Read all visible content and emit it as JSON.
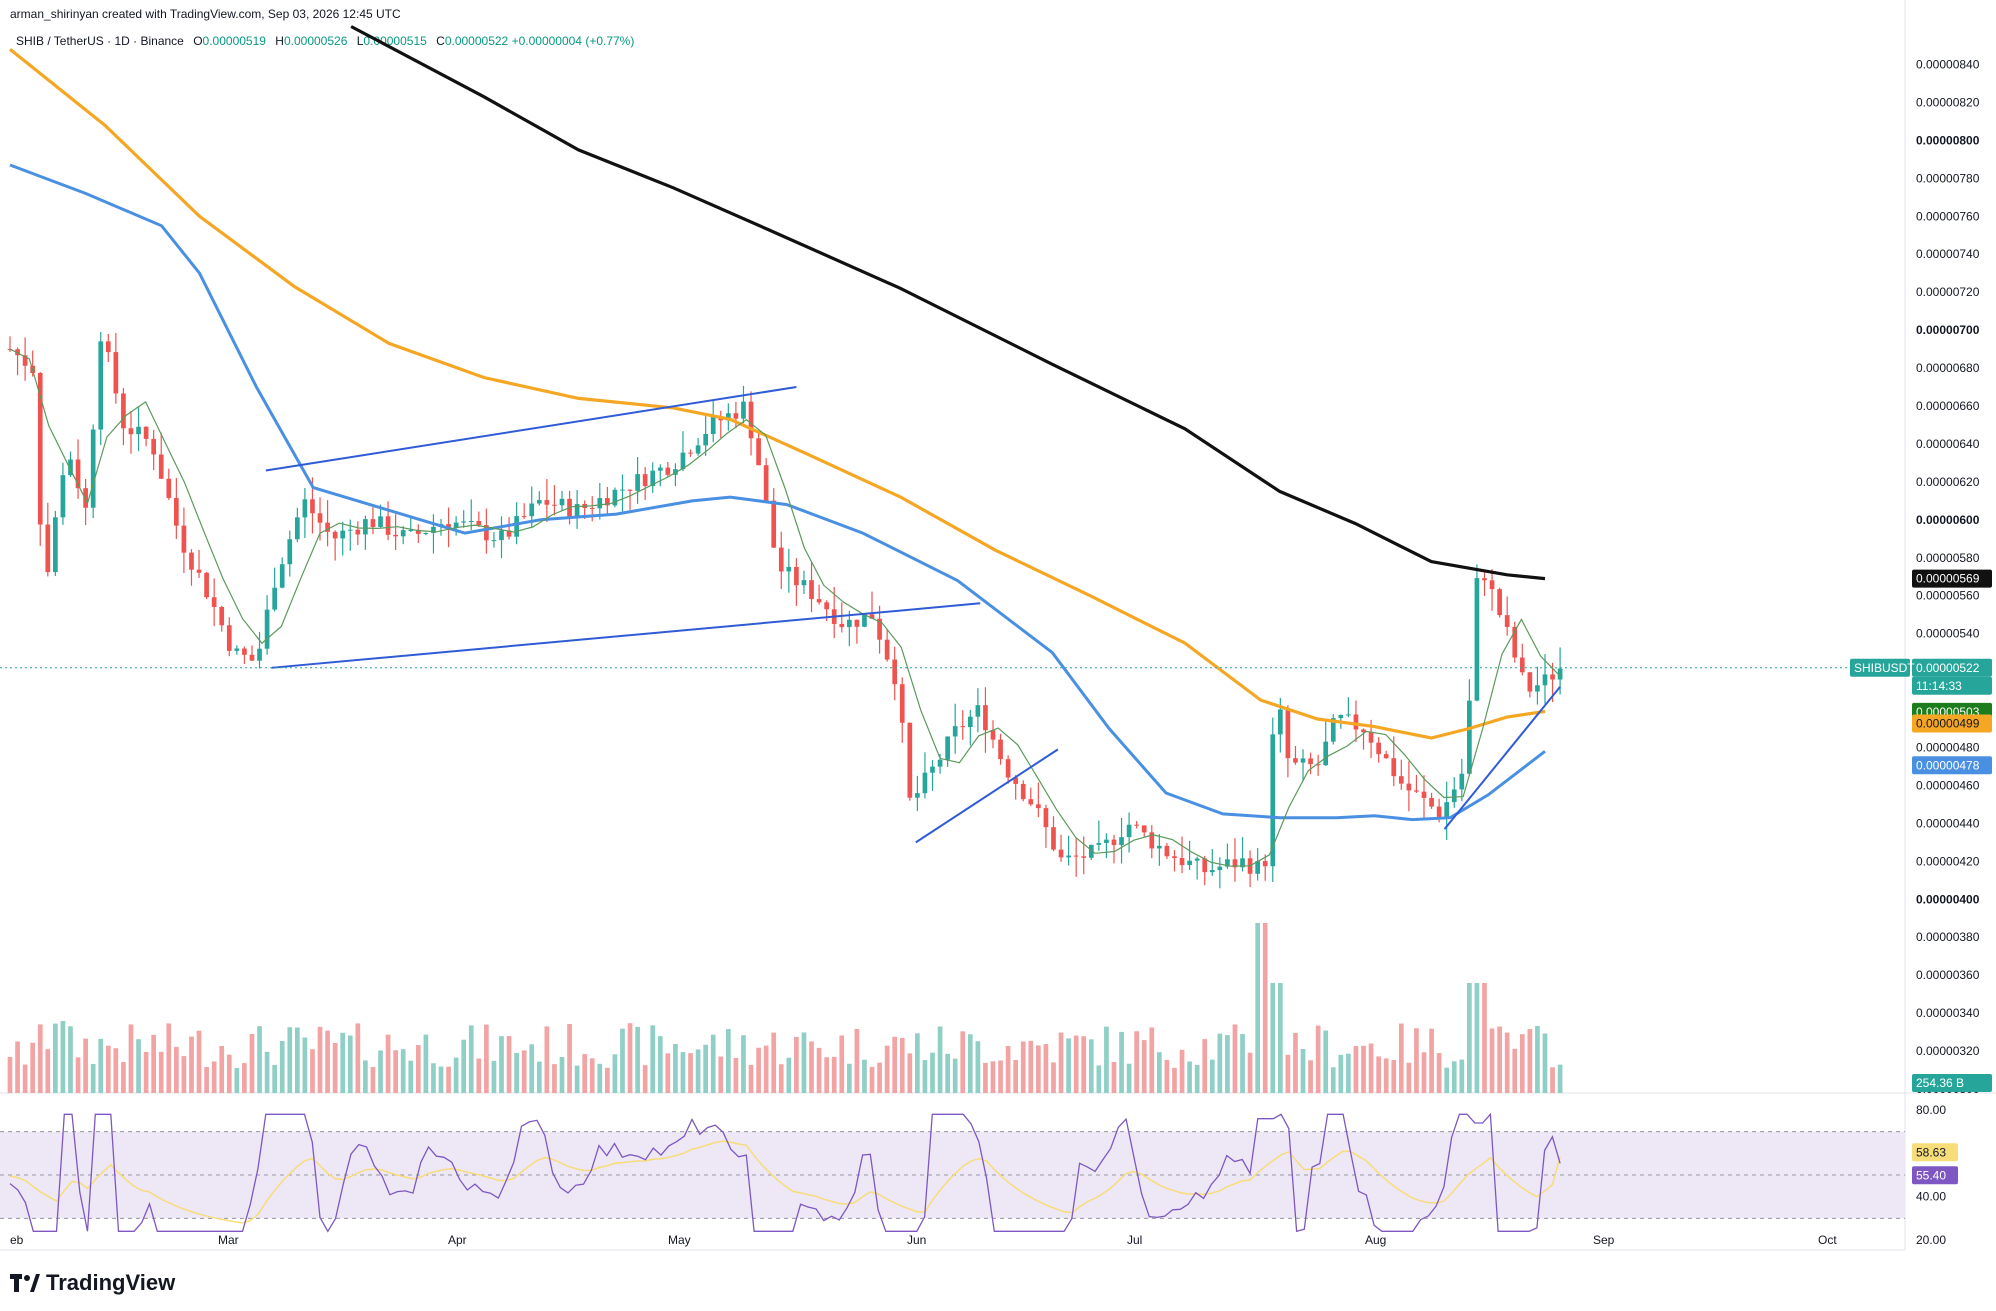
{
  "header": {
    "credit": "arman_shirinyan created with TradingView.com, Sep 03, 2026 12:45 UTC"
  },
  "symbol": {
    "name": "SHIB / TetherUS · 1D · Binance",
    "open_label": "O",
    "open": "0.00000519",
    "high_label": "H",
    "high": "0.00000526",
    "low_label": "L",
    "low": "0.00000515",
    "close_label": "C",
    "close": "0.00000522",
    "change": "+0.00000004 (+0.77%)"
  },
  "logo": {
    "text": "TradingView",
    "icon": "tradingview-logo-icon"
  },
  "colors": {
    "up": "#26a69a",
    "down": "#ef5350",
    "volume_up": "#8fcfc5",
    "volume_down": "#f2a3a3",
    "ma_fast": "#5b9a5b",
    "ma_50": "#4a90e2",
    "ma_100": "#f5a623",
    "ma_200": "#111111",
    "trendline": "#2f5bd6",
    "rsi": "#7e57c2",
    "rsi_ma": "#f7dd7a",
    "rsi_band": "#ede7f6"
  },
  "badges": {
    "ma200": "0.00000569",
    "symbol_tag": "SHIBUSDT",
    "price": "0.00000522",
    "countdown": "11:14:33",
    "ma_fast": "0.00000503",
    "ma100": "0.00000499",
    "ma50": "0.00000478",
    "volume": "254.36 B",
    "rsi_ma": "58.63",
    "rsi": "55.40"
  },
  "chart_data": {
    "type": "candlestick",
    "symbol": "SHIBUSDT",
    "timeframe": "1D",
    "x_labels": [
      "eb",
      "Mar",
      "Apr",
      "May",
      "Jun",
      "Jul",
      "Aug",
      "Sep",
      "Oct"
    ],
    "y_ticks": [
      "0.00000840",
      "0.00000820",
      "0.00000800",
      "0.00000780",
      "0.00000760",
      "0.00000740",
      "0.00000720",
      "0.00000700",
      "0.00000680",
      "0.00000660",
      "0.00000640",
      "0.00000620",
      "0.00000600",
      "0.00000580",
      "0.00000560",
      "0.00000540",
      "0.00000520",
      "0.00000500",
      "0.00000480",
      "0.00000460",
      "0.00000440",
      "0.00000420",
      "0.00000400",
      "0.00000380",
      "0.00000360",
      "0.00000340",
      "0.00000320",
      "0.00000300"
    ],
    "ylim": [
      3e-06,
      8.45e-06
    ],
    "rsi_ticks": [
      "80.00",
      "40.00",
      "20.00"
    ],
    "rsi_levels": [
      70,
      50,
      30
    ],
    "moving_averages": [
      {
        "name": "200",
        "last": 5.69e-06,
        "points": [
          [
            0.18,
            8.6e-06
          ],
          [
            0.25,
            8.23e-06
          ],
          [
            0.3,
            7.95e-06
          ],
          [
            0.35,
            7.75e-06
          ],
          [
            0.4,
            7.53e-06
          ],
          [
            0.47,
            7.22e-06
          ],
          [
            0.55,
            6.82e-06
          ],
          [
            0.62,
            6.48e-06
          ],
          [
            0.67,
            6.15e-06
          ],
          [
            0.71,
            5.98e-06
          ],
          [
            0.75,
            5.78e-06
          ],
          [
            0.79,
            5.71e-06
          ],
          [
            0.81,
            5.69e-06
          ]
        ]
      },
      {
        "name": "100",
        "last": 4.99e-06,
        "points": [
          [
            0.0,
            8.48e-06
          ],
          [
            0.05,
            8.08e-06
          ],
          [
            0.1,
            7.6e-06
          ],
          [
            0.15,
            7.23e-06
          ],
          [
            0.2,
            6.93e-06
          ],
          [
            0.25,
            6.75e-06
          ],
          [
            0.3,
            6.64e-06
          ],
          [
            0.35,
            6.59e-06
          ],
          [
            0.38,
            6.53e-06
          ],
          [
            0.42,
            6.35e-06
          ],
          [
            0.47,
            6.12e-06
          ],
          [
            0.52,
            5.84e-06
          ],
          [
            0.57,
            5.6e-06
          ],
          [
            0.62,
            5.35e-06
          ],
          [
            0.66,
            5.05e-06
          ],
          [
            0.69,
            4.95e-06
          ],
          [
            0.72,
            4.91e-06
          ],
          [
            0.75,
            4.85e-06
          ],
          [
            0.77,
            4.9e-06
          ],
          [
            0.79,
            4.96e-06
          ],
          [
            0.81,
            4.99e-06
          ]
        ]
      },
      {
        "name": "50",
        "last": 4.78e-06,
        "points": [
          [
            0.0,
            7.87e-06
          ],
          [
            0.04,
            7.72e-06
          ],
          [
            0.08,
            7.55e-06
          ],
          [
            0.1,
            7.3e-06
          ],
          [
            0.13,
            6.7e-06
          ],
          [
            0.16,
            6.17e-06
          ],
          [
            0.2,
            6.05e-06
          ],
          [
            0.24,
            5.93e-06
          ],
          [
            0.28,
            6e-06
          ],
          [
            0.32,
            6.03e-06
          ],
          [
            0.36,
            6.1e-06
          ],
          [
            0.38,
            6.12e-06
          ],
          [
            0.41,
            6.08e-06
          ],
          [
            0.45,
            5.93e-06
          ],
          [
            0.5,
            5.68e-06
          ],
          [
            0.55,
            5.3e-06
          ],
          [
            0.58,
            4.9e-06
          ],
          [
            0.61,
            4.56e-06
          ],
          [
            0.64,
            4.45e-06
          ],
          [
            0.67,
            4.43e-06
          ],
          [
            0.7,
            4.43e-06
          ],
          [
            0.72,
            4.44e-06
          ],
          [
            0.74,
            4.42e-06
          ],
          [
            0.76,
            4.43e-06
          ],
          [
            0.78,
            4.55e-06
          ],
          [
            0.81,
            4.78e-06
          ]
        ]
      }
    ],
    "trendlines": [
      {
        "points": [
          [
            0.135,
            6.26e-06
          ],
          [
            0.415,
            6.7e-06
          ]
        ]
      },
      {
        "points": [
          [
            0.138,
            5.22e-06
          ],
          [
            0.512,
            5.56e-06
          ]
        ]
      },
      {
        "points": [
          [
            0.478,
            4.3e-06
          ],
          [
            0.553,
            4.79e-06
          ]
        ]
      },
      {
        "points": [
          [
            0.757,
            4.37e-06
          ],
          [
            0.818,
            5.12e-06
          ]
        ]
      }
    ],
    "last_price": 5.22e-06,
    "rsi_last": 55.4,
    "rsi_ma_last": 58.63
  }
}
